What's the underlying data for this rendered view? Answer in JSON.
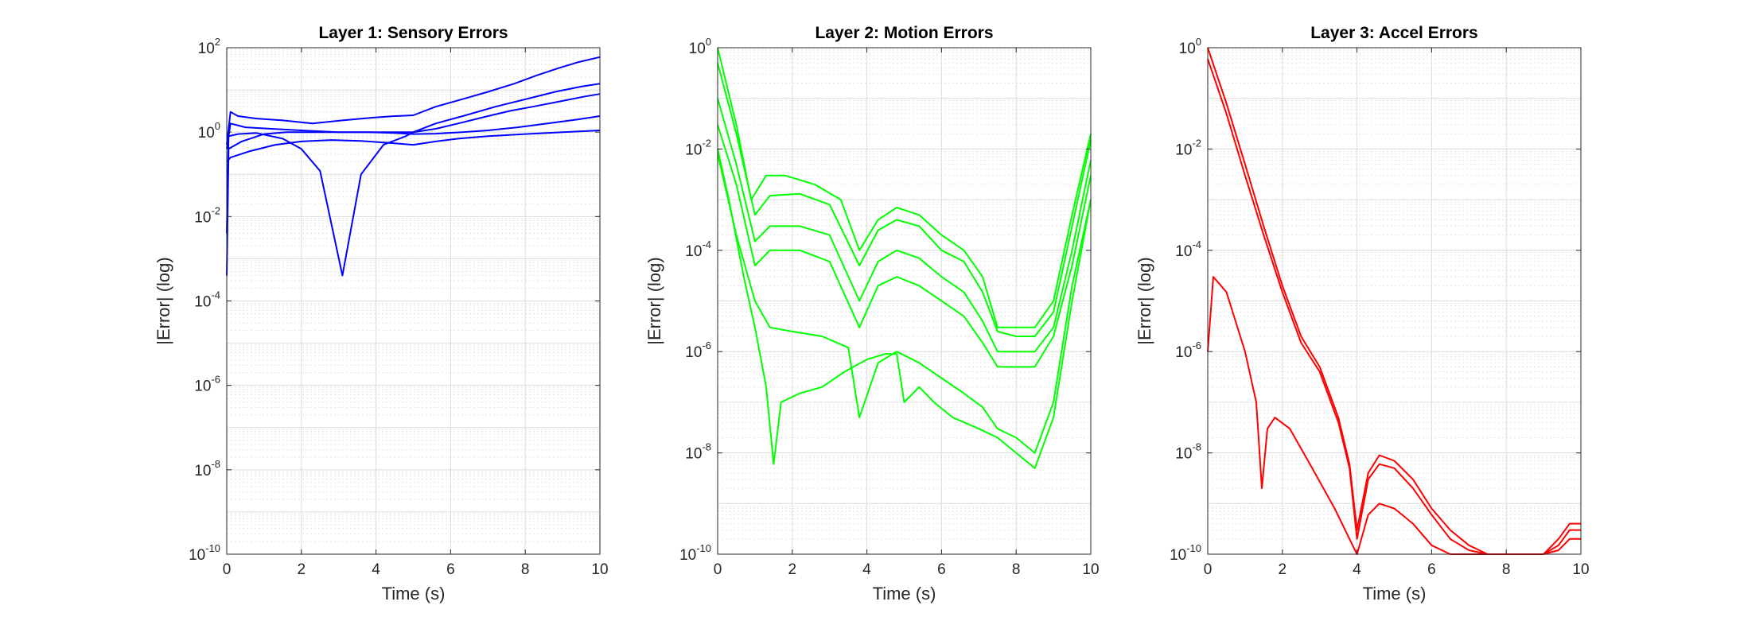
{
  "chart_data": [
    {
      "type": "line",
      "title": "Layer 1: Sensory Errors",
      "xlabel": "Time (s)",
      "ylabel": "|Error| (log)",
      "xlim": [
        0,
        10
      ],
      "ylim": [
        1e-10,
        100
      ],
      "yscale": "log",
      "xticks": [
        "0",
        "2",
        "4",
        "6",
        "8",
        "10"
      ],
      "yticks": [
        {
          "base": "10",
          "exp": "-10"
        },
        {
          "base": "10",
          "exp": "-8"
        },
        {
          "base": "10",
          "exp": "-6"
        },
        {
          "base": "10",
          "exp": "-4"
        },
        {
          "base": "10",
          "exp": "-2"
        },
        {
          "base": "10",
          "exp": "0"
        },
        {
          "base": "10",
          "exp": "2"
        }
      ],
      "grid": true,
      "color": "#0000ff",
      "series": [
        {
          "x": [
            0,
            0.1,
            0.3,
            0.8,
            1.5,
            2.3,
            3.1,
            3.9,
            4.5,
            5.0,
            5.6,
            6.3,
            7.0,
            7.7,
            8.3,
            8.9,
            9.4,
            10.0
          ],
          "y": [
            0.5,
            3.0,
            2.4,
            2.1,
            1.9,
            1.6,
            1.9,
            2.2,
            2.4,
            2.5,
            4,
            6,
            9,
            14,
            22,
            33,
            45,
            60
          ]
        },
        {
          "x": [
            0,
            0.1,
            0.5,
            1.2,
            2.0,
            3.0,
            4.0,
            5.0,
            5.6,
            6.4,
            7.2,
            8.0,
            8.8,
            9.5,
            10.0
          ],
          "y": [
            0.4,
            1.6,
            1.3,
            1.2,
            1.1,
            1.0,
            1.0,
            1.0,
            1.6,
            2.5,
            4,
            6,
            9,
            12,
            14
          ]
        },
        {
          "x": [
            0,
            0.05,
            0.3,
            0.8,
            1.5,
            2.0,
            2.5,
            3.1,
            3.6,
            4.2,
            4.8,
            5.0,
            5.6,
            6.2,
            7.0,
            7.6,
            8.2,
            9.0,
            9.6,
            10.0
          ],
          "y": [
            0.004,
            0.8,
            0.9,
            0.95,
            0.7,
            0.4,
            0.12,
            0.0004,
            0.1,
            0.5,
            0.8,
            1.0,
            1.2,
            1.6,
            2.4,
            3.2,
            4.0,
            5.5,
            7.0,
            8.0
          ]
        },
        {
          "x": [
            0,
            0.05,
            0.4,
            1.0,
            1.6,
            2.3,
            3.0,
            3.8,
            4.5,
            5.0,
            5.6,
            6.3,
            7.0,
            7.8,
            8.6,
            9.4,
            10.0
          ],
          "y": [
            0.0004,
            0.4,
            0.6,
            0.9,
            1.0,
            1.0,
            1.0,
            1.0,
            0.95,
            0.9,
            0.92,
            1.0,
            1.1,
            1.3,
            1.6,
            2.0,
            2.4
          ]
        },
        {
          "x": [
            0,
            0.1,
            0.6,
            1.3,
            2.0,
            2.8,
            3.6,
            4.4,
            5.0,
            5.6,
            6.2,
            7.0,
            8.0,
            9.0,
            10.0
          ],
          "y": [
            0.2,
            0.25,
            0.35,
            0.5,
            0.6,
            0.65,
            0.62,
            0.55,
            0.5,
            0.6,
            0.7,
            0.8,
            0.9,
            1.0,
            1.1
          ]
        }
      ]
    },
    {
      "type": "line",
      "title": "Layer 2: Motion Errors",
      "xlabel": "Time (s)",
      "ylabel": "|Error| (log)",
      "xlim": [
        0,
        10
      ],
      "ylim": [
        1e-10,
        1
      ],
      "yscale": "log",
      "xticks": [
        "0",
        "2",
        "4",
        "6",
        "8",
        "10"
      ],
      "yticks": [
        {
          "base": "10",
          "exp": "-10"
        },
        {
          "base": "10",
          "exp": "-8"
        },
        {
          "base": "10",
          "exp": "-6"
        },
        {
          "base": "10",
          "exp": "-4"
        },
        {
          "base": "10",
          "exp": "-2"
        },
        {
          "base": "10",
          "exp": "0"
        }
      ],
      "grid": true,
      "color": "#00ff00",
      "series": [
        {
          "x": [
            0,
            0.5,
            0.9,
            1.3,
            1.8,
            2.6,
            3.3,
            3.8,
            4.3,
            4.8,
            5.4,
            6.0,
            6.6,
            7.1,
            7.5,
            8.0,
            8.5,
            9.0,
            9.5,
            10.0
          ],
          "y": [
            1.0,
            0.03,
            0.001,
            0.003,
            0.003,
            0.002,
            0.001,
            0.0001,
            0.0004,
            0.0007,
            0.0005,
            0.0002,
            0.0001,
            3e-05,
            3e-06,
            3e-06,
            3e-06,
            1e-05,
            0.0005,
            0.02
          ]
        },
        {
          "x": [
            0,
            0.5,
            1.0,
            1.4,
            2.2,
            3.0,
            3.8,
            4.3,
            4.8,
            5.4,
            6.0,
            6.6,
            7.1,
            7.5,
            8.0,
            8.5,
            9.0,
            9.5,
            10.0
          ],
          "y": [
            0.5,
            0.02,
            0.0005,
            0.0012,
            0.0013,
            0.0008,
            5e-05,
            0.00025,
            0.0004,
            0.0003,
            0.0001,
            6e-05,
            1.5e-05,
            2.5e-06,
            2e-06,
            2e-06,
            6e-06,
            0.0003,
            0.015
          ]
        },
        {
          "x": [
            0,
            0.5,
            1.0,
            1.4,
            2.2,
            3.0,
            3.8,
            4.3,
            4.8,
            5.4,
            6.0,
            6.6,
            7.1,
            7.5,
            8.0,
            8.5,
            9.0,
            9.5,
            10.0
          ],
          "y": [
            0.1,
            0.005,
            0.00015,
            0.0003,
            0.0003,
            0.0002,
            1e-05,
            6e-05,
            0.0001,
            7e-05,
            3e-05,
            1.5e-05,
            4e-06,
            1e-06,
            1e-06,
            1e-06,
            3e-06,
            0.0001,
            0.006
          ]
        },
        {
          "x": [
            0,
            0.5,
            1.0,
            1.4,
            2.2,
            3.0,
            3.8,
            4.3,
            4.8,
            5.4,
            6.0,
            6.6,
            7.1,
            7.5,
            8.0,
            8.5,
            9.0,
            9.5,
            10.0
          ],
          "y": [
            0.03,
            0.002,
            5e-05,
            0.0001,
            0.0001,
            6e-05,
            3e-06,
            2e-05,
            3e-05,
            2e-05,
            1e-05,
            5e-06,
            1.5e-06,
            5e-07,
            5e-07,
            5e-07,
            2e-06,
            5e-05,
            0.003
          ]
        },
        {
          "x": [
            0,
            0.5,
            1.0,
            1.4,
            2.0,
            2.8,
            3.5,
            3.8,
            4.3,
            4.8,
            5.4,
            6.0,
            6.6,
            7.1,
            7.5,
            8.0,
            8.5,
            9.0,
            9.5,
            10.0
          ],
          "y": [
            0.008,
            0.0002,
            1e-05,
            3e-06,
            2.5e-06,
            2e-06,
            1.2e-06,
            5e-08,
            6e-07,
            1e-06,
            6e-07,
            3e-07,
            1.5e-07,
            8e-08,
            3e-08,
            2e-08,
            1e-08,
            1e-07,
            2e-05,
            0.001
          ]
        },
        {
          "x": [
            0,
            0.3,
            0.7,
            1.0,
            1.3,
            1.5,
            1.7,
            2.2,
            2.8,
            3.4,
            4.0,
            4.5,
            4.8,
            5.0,
            5.4,
            5.8,
            6.3,
            7.0,
            7.5,
            8.0,
            8.5,
            9.0,
            9.5,
            10.0
          ],
          "y": [
            0.01,
            0.001,
            3e-05,
            3e-06,
            2e-07,
            6e-09,
            1e-07,
            1.5e-07,
            2e-07,
            4e-07,
            7e-07,
            9e-07,
            9e-07,
            1e-07,
            2e-07,
            1e-07,
            5e-08,
            3e-08,
            2e-08,
            1e-08,
            5e-09,
            5e-08,
            1e-05,
            0.001
          ]
        }
      ]
    },
    {
      "type": "line",
      "title": "Layer 3: Accel Errors",
      "xlabel": "Time (s)",
      "ylabel": "|Error| (log)",
      "xlim": [
        0,
        10
      ],
      "ylim": [
        1e-10,
        1
      ],
      "yscale": "log",
      "xticks": [
        "0",
        "2",
        "4",
        "6",
        "8",
        "10"
      ],
      "yticks": [
        {
          "base": "10",
          "exp": "-10"
        },
        {
          "base": "10",
          "exp": "-8"
        },
        {
          "base": "10",
          "exp": "-6"
        },
        {
          "base": "10",
          "exp": "-4"
        },
        {
          "base": "10",
          "exp": "-2"
        },
        {
          "base": "10",
          "exp": "0"
        }
      ],
      "grid": true,
      "color": "#ff0000",
      "series": [
        {
          "x": [
            0,
            0.5,
            1.0,
            1.5,
            2.0,
            2.5,
            3.0,
            3.5,
            3.8,
            4.0,
            4.3,
            4.6,
            5.0,
            5.5,
            6.0,
            6.5,
            7.0,
            7.5,
            8.0,
            9.0,
            9.4,
            9.7,
            10.0
          ],
          "y": [
            1.0,
            0.08,
            0.005,
            0.0003,
            2e-05,
            2e-06,
            5e-07,
            5e-08,
            6e-09,
            3e-10,
            4e-09,
            9e-09,
            7e-09,
            3e-09,
            8e-10,
            3e-10,
            1.5e-10,
            1e-10,
            1e-10,
            1e-10,
            2e-10,
            4e-10,
            4e-10
          ]
        },
        {
          "x": [
            0,
            0.5,
            1.0,
            1.5,
            2.0,
            2.5,
            3.0,
            3.5,
            3.8,
            4.0,
            4.3,
            4.6,
            5.0,
            5.5,
            6.0,
            6.5,
            7.0,
            7.5,
            8.0,
            9.0,
            9.4,
            9.7,
            10.0
          ],
          "y": [
            0.6,
            0.05,
            0.003,
            0.0002,
            1.5e-05,
            1.5e-06,
            4e-07,
            4e-08,
            5e-09,
            2e-10,
            3e-09,
            6e-09,
            5e-09,
            2e-09,
            6e-10,
            2e-10,
            1.2e-10,
            1e-10,
            1e-10,
            1e-10,
            1.5e-10,
            3e-10,
            3e-10
          ]
        },
        {
          "x": [
            0,
            0.15,
            0.5,
            1.0,
            1.3,
            1.45,
            1.6,
            1.8,
            2.2,
            2.8,
            3.4,
            3.8,
            4.0,
            4.3,
            4.6,
            5.0,
            5.5,
            6.0,
            6.5,
            7.0,
            7.5,
            8.0,
            9.0,
            9.4,
            9.7,
            10.0
          ],
          "y": [
            1e-06,
            3e-05,
            1.5e-05,
            1e-06,
            1e-07,
            2e-09,
            3e-08,
            5e-08,
            3e-08,
            5e-09,
            8e-10,
            2e-10,
            1e-10,
            6e-10,
            1e-09,
            8e-10,
            4e-10,
            1.5e-10,
            1e-10,
            1e-10,
            1e-10,
            1e-10,
            1e-10,
            1.2e-10,
            2e-10,
            2e-10
          ]
        }
      ]
    }
  ]
}
